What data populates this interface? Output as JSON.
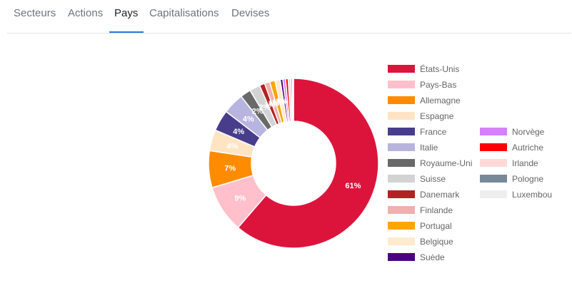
{
  "tabs": [
    {
      "label": "Secteurs",
      "active": false
    },
    {
      "label": "Actions",
      "active": false
    },
    {
      "label": "Pays",
      "active": true
    },
    {
      "label": "Capitalisations",
      "active": false
    },
    {
      "label": "Devises",
      "active": false
    }
  ],
  "chart_data": {
    "type": "pie",
    "subtype": "doughnut",
    "legend_position": "right",
    "series": [
      {
        "name": "États-Unis",
        "value": 61,
        "color": "#dc143c",
        "label": "61%"
      },
      {
        "name": "Pays-Bas",
        "value": 9,
        "color": "#ffc0cb",
        "label": "9%"
      },
      {
        "name": "Allemagne",
        "value": 7,
        "color": "#ff8c00",
        "label": "7%"
      },
      {
        "name": "Espagne",
        "value": 4,
        "color": "#ffe4c4",
        "label": "4%"
      },
      {
        "name": "France",
        "value": 4,
        "color": "#483d8b",
        "label": "4%"
      },
      {
        "name": "Italie",
        "value": 4,
        "color": "#b8b4e0",
        "label": "4%"
      },
      {
        "name": "Royaume-Uni",
        "value": 2,
        "color": "#696969",
        "label": "2%"
      },
      {
        "name": "Suisse",
        "value": 2,
        "color": "#d3d3d3",
        "label": "2%"
      },
      {
        "name": "Danemark",
        "value": 1,
        "color": "#b22222",
        "label": "1%"
      },
      {
        "name": "Finlande",
        "value": 1,
        "color": "#f0b0b0",
        "label": "1%"
      },
      {
        "name": "Portugal",
        "value": 1,
        "color": "#ffa500",
        "label": "1%"
      },
      {
        "name": "Belgique",
        "value": 1,
        "color": "#ffebcd",
        "label": "1%"
      },
      {
        "name": "Suède",
        "value": 0.5,
        "color": "#4b0082",
        "label": ""
      },
      {
        "name": "Norvège",
        "value": 0.5,
        "color": "#d580ff",
        "label": ""
      },
      {
        "name": "Autriche",
        "value": 0.5,
        "color": "#ff0000",
        "label": ""
      },
      {
        "name": "Irlande",
        "value": 0.5,
        "color": "#ffd8d8",
        "label": ""
      },
      {
        "name": "Pologne",
        "value": 0.3,
        "color": "#778899",
        "label": ""
      },
      {
        "name": "Luxembou",
        "value": 0.2,
        "color": "#eeeeee",
        "label": ""
      }
    ]
  }
}
